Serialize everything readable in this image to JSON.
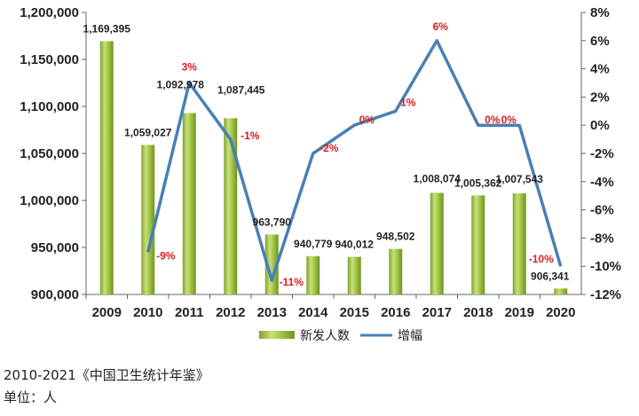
{
  "chart_data": {
    "type": "bar",
    "categories": [
      "2009",
      "2010",
      "2011",
      "2012",
      "2013",
      "2014",
      "2015",
      "2016",
      "2017",
      "2018",
      "2019",
      "2020"
    ],
    "series": [
      {
        "name": "新发人数",
        "type": "bar",
        "axis": "left",
        "values": [
          1169395,
          1059027,
          1092978,
          1087445,
          963790,
          940779,
          940012,
          948502,
          1008074,
          1005362,
          1007543,
          906341
        ],
        "labels": [
          "1,169,395",
          "1,059,027",
          "1,092,978",
          "1,087,445",
          "963,790",
          "940,779",
          "940,012",
          "948,502",
          "1,008,074",
          "1,005,362",
          "1,007,543",
          "906,341"
        ]
      },
      {
        "name": "增幅",
        "type": "line",
        "axis": "right",
        "values": [
          null,
          -9,
          3,
          -1,
          -11,
          -2,
          0,
          1,
          6,
          0,
          0,
          -10
        ],
        "labels": [
          "",
          "-9%",
          "3%",
          "-1%",
          "-11%",
          "-2%",
          "0%",
          "1%",
          "6%",
          "0%",
          "0%",
          "-10%"
        ]
      }
    ],
    "y_left": {
      "lim": [
        900000,
        1200000
      ],
      "ticks": [
        900000,
        950000,
        1000000,
        1050000,
        1100000,
        1150000,
        1200000
      ],
      "tick_labels": [
        "900,000",
        "950,000",
        "1,000,000",
        "1,050,000",
        "1,100,000",
        "1,150,000",
        "1,200,000"
      ]
    },
    "y_right": {
      "lim": [
        -12,
        8
      ],
      "ticks": [
        -12,
        -10,
        -8,
        -6,
        -4,
        -2,
        0,
        2,
        4,
        6,
        8
      ],
      "tick_labels": [
        "-12%",
        "-10%",
        "-8%",
        "-6%",
        "-4%",
        "-2%",
        "0%",
        "2%",
        "4%",
        "6%",
        "8%"
      ]
    },
    "grid": false,
    "legend": "bottom-center",
    "colors": {
      "bar": "#8db43a",
      "bar_light": "#c9e07a",
      "line": "#4a7fb5",
      "pct_label": "#d61f1f"
    }
  },
  "footnotes": {
    "source": "2010-2021《中国卫生统计年鉴》",
    "unit": "单位：人"
  }
}
